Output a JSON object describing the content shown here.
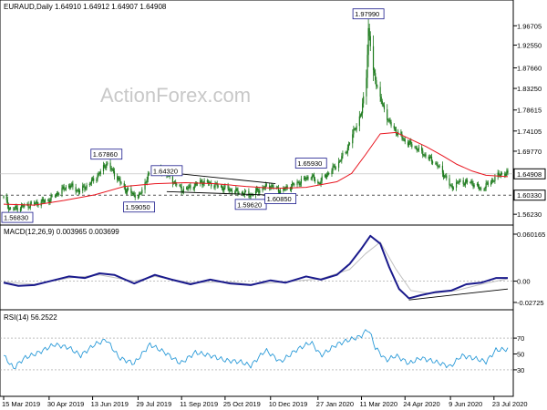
{
  "colors": {
    "background": "#ffffff",
    "axis": "#000000",
    "candle": "#1c7a1c",
    "sma": "#e8141e",
    "macd": "#1a1a8c",
    "signal": "#c0c0c0",
    "rsi": "#2a9ad8",
    "trendline": "#000000",
    "current_box": "#000000",
    "watermark": "#c8c8c8"
  },
  "header": {
    "title": "EURAUD,Daily  1.64910 1.64912 1.64907 1.64908",
    "watermark": "ActionForex.com"
  },
  "chart_data": [
    {
      "type": "candlestick",
      "panel": "price",
      "title": "EURAUD,Daily  1.64910 1.64912 1.64907 1.64908",
      "ylim": [
        1.545,
        1.995
      ],
      "y_ticks": [
        "1.96705",
        "1.92550",
        "1.87660",
        "1.83250",
        "1.78615",
        "1.74105",
        "1.69770",
        "1.64908",
        "1.60330",
        "1.56230"
      ],
      "current_price": "1.64908",
      "support_level": "1.60330",
      "annotations": [
        {
          "label": "1.56830",
          "date": "2019-03-22",
          "value": 1.5683
        },
        {
          "label": "1.67860",
          "date": "2019-06-27",
          "value": 1.6786
        },
        {
          "label": "1.59050",
          "date": "2019-07-30",
          "value": 1.5905
        },
        {
          "label": "1.64320",
          "date": "2019-08-27",
          "value": 1.6432
        },
        {
          "label": "1.59620",
          "date": "2019-11-20",
          "value": 1.5962
        },
        {
          "label": "1.60850",
          "date": "2019-12-20",
          "value": 1.6085
        },
        {
          "label": "1.65930",
          "date": "2020-01-20",
          "value": 1.6593
        },
        {
          "label": "1.97990",
          "date": "2020-03-18",
          "value": 1.9799
        }
      ],
      "x_ticks": [
        "15 Mar 2019",
        "30 Apr 2019",
        "13 Jun 2019",
        "29 Jul 2019",
        "11 Sep 2019",
        "25 Oct 2019",
        "10 Dec 2019",
        "27 Jan 2020",
        "11 Mar 2020",
        "24 Apr 2020",
        "9 Jun 2020",
        "23 Jul 2020"
      ],
      "xlim": [
        "2019-03-15",
        "2020-08-06"
      ],
      "series": [
        {
          "name": "",
          "price_path": [
            [
              "2019-03-15",
              1.598
            ],
            [
              "2019-03-22",
              1.572
            ],
            [
              "2019-04-01",
              1.578
            ],
            [
              "2019-04-15",
              1.585
            ],
            [
              "2019-04-30",
              1.593
            ],
            [
              "2019-05-10",
              1.61
            ],
            [
              "2019-05-20",
              1.625
            ],
            [
              "2019-05-30",
              1.612
            ],
            [
              "2019-06-10",
              1.628
            ],
            [
              "2019-06-20",
              1.65
            ],
            [
              "2019-06-27",
              1.672
            ],
            [
              "2019-07-05",
              1.65
            ],
            [
              "2019-07-15",
              1.618
            ],
            [
              "2019-07-22",
              1.608
            ],
            [
              "2019-07-30",
              1.6
            ],
            [
              "2019-08-07",
              1.64
            ],
            [
              "2019-08-15",
              1.662
            ],
            [
              "2019-08-27",
              1.648
            ],
            [
              "2019-09-05",
              1.628
            ],
            [
              "2019-09-11",
              1.615
            ],
            [
              "2019-09-20",
              1.62
            ],
            [
              "2019-10-01",
              1.632
            ],
            [
              "2019-10-10",
              1.628
            ],
            [
              "2019-10-25",
              1.618
            ],
            [
              "2019-11-05",
              1.611
            ],
            [
              "2019-11-20",
              1.604
            ],
            [
              "2019-12-01",
              1.618
            ],
            [
              "2019-12-10",
              1.624
            ],
            [
              "2019-12-20",
              1.612
            ],
            [
              "2020-01-05",
              1.628
            ],
            [
              "2020-01-20",
              1.645
            ],
            [
              "2020-01-27",
              1.628
            ],
            [
              "2020-02-05",
              1.648
            ],
            [
              "2020-02-15",
              1.668
            ],
            [
              "2020-02-25",
              1.7
            ],
            [
              "2020-03-05",
              1.75
            ],
            [
              "2020-03-11",
              1.78
            ],
            [
              "2020-03-16",
              1.86
            ],
            [
              "2020-03-18",
              1.96
            ],
            [
              "2020-03-23",
              1.87
            ],
            [
              "2020-03-30",
              1.81
            ],
            [
              "2020-04-08",
              1.76
            ],
            [
              "2020-04-15",
              1.74
            ],
            [
              "2020-04-24",
              1.72
            ],
            [
              "2020-05-05",
              1.705
            ],
            [
              "2020-05-15",
              1.688
            ],
            [
              "2020-05-25",
              1.672
            ],
            [
              "2020-06-05",
              1.64
            ],
            [
              "2020-06-09",
              1.62
            ],
            [
              "2020-06-18",
              1.632
            ],
            [
              "2020-07-01",
              1.63
            ],
            [
              "2020-07-10",
              1.615
            ],
            [
              "2020-07-23",
              1.638
            ],
            [
              "2020-07-30",
              1.65
            ],
            [
              "2020-08-06",
              1.649
            ]
          ]
        },
        {
          "name": "",
          "sma_path": [
            [
              "2019-03-15",
              1.584
            ],
            [
              "2019-04-15",
              1.582
            ],
            [
              "2019-05-15",
              1.592
            ],
            [
              "2019-06-15",
              1.604
            ],
            [
              "2019-07-15",
              1.622
            ],
            [
              "2019-08-15",
              1.628
            ],
            [
              "2019-09-15",
              1.63
            ],
            [
              "2019-10-15",
              1.628
            ],
            [
              "2019-11-15",
              1.622
            ],
            [
              "2019-12-15",
              1.618
            ],
            [
              "2020-01-15",
              1.62
            ],
            [
              "2020-02-15",
              1.632
            ],
            [
              "2020-03-01",
              1.65
            ],
            [
              "2020-03-15",
              1.69
            ],
            [
              "2020-03-30",
              1.735
            ],
            [
              "2020-04-15",
              1.738
            ],
            [
              "2020-05-01",
              1.722
            ],
            [
              "2020-05-15",
              1.708
            ],
            [
              "2020-06-01",
              1.688
            ],
            [
              "2020-06-15",
              1.67
            ],
            [
              "2020-07-01",
              1.655
            ],
            [
              "2020-07-15",
              1.646
            ],
            [
              "2020-08-06",
              1.643
            ]
          ]
        }
      ],
      "trendlines": [
        {
          "from": [
            "2019-08-27",
            1.652
          ],
          "to": [
            "2019-12-15",
            1.628
          ]
        },
        {
          "from": [
            "2019-08-27",
            1.611
          ],
          "to": [
            "2019-12-15",
            1.603
          ]
        }
      ]
    },
    {
      "type": "line",
      "panel": "macd",
      "title": "MACD(12,26,9) 0.003965 0.003699",
      "ylim": [
        -0.032,
        0.066
      ],
      "y_ticks": [
        "0.060165",
        "0.00",
        "-0.02725"
      ],
      "series": [
        {
          "name": "",
          "values": [
            [
              "2019-03-15",
              -0.002
            ],
            [
              "2019-03-30",
              -0.006
            ],
            [
              "2019-04-15",
              -0.005
            ],
            [
              "2019-05-01",
              0.0
            ],
            [
              "2019-05-20",
              0.006
            ],
            [
              "2019-06-05",
              0.004
            ],
            [
              "2019-06-20",
              0.01
            ],
            [
              "2019-07-05",
              0.008
            ],
            [
              "2019-07-25",
              -0.003
            ],
            [
              "2019-08-15",
              0.008
            ],
            [
              "2019-09-01",
              0.002
            ],
            [
              "2019-09-20",
              -0.004
            ],
            [
              "2019-10-10",
              0.002
            ],
            [
              "2019-10-30",
              -0.003
            ],
            [
              "2019-11-20",
              -0.005
            ],
            [
              "2019-12-10",
              0.001
            ],
            [
              "2019-12-25",
              -0.002
            ],
            [
              "2020-01-15",
              0.006
            ],
            [
              "2020-01-30",
              0.002
            ],
            [
              "2020-02-15",
              0.008
            ],
            [
              "2020-02-28",
              0.022
            ],
            [
              "2020-03-10",
              0.04
            ],
            [
              "2020-03-20",
              0.058
            ],
            [
              "2020-03-30",
              0.048
            ],
            [
              "2020-04-08",
              0.018
            ],
            [
              "2020-04-18",
              -0.01
            ],
            [
              "2020-04-28",
              -0.022
            ],
            [
              "2020-05-10",
              -0.018
            ],
            [
              "2020-05-25",
              -0.014
            ],
            [
              "2020-06-10",
              -0.012
            ],
            [
              "2020-06-25",
              -0.004
            ],
            [
              "2020-07-10",
              -0.002
            ],
            [
              "2020-07-25",
              0.004
            ],
            [
              "2020-08-06",
              0.004
            ]
          ]
        },
        {
          "name": "",
          "values": [
            [
              "2019-03-15",
              -0.001
            ],
            [
              "2019-04-15",
              -0.004
            ],
            [
              "2019-05-20",
              0.004
            ],
            [
              "2019-06-20",
              0.008
            ],
            [
              "2019-07-25",
              0.0
            ],
            [
              "2019-08-15",
              0.006
            ],
            [
              "2019-09-20",
              -0.002
            ],
            [
              "2019-10-30",
              -0.001
            ],
            [
              "2019-11-20",
              -0.004
            ],
            [
              "2019-12-25",
              -0.001
            ],
            [
              "2020-01-30",
              0.003
            ],
            [
              "2020-02-28",
              0.015
            ],
            [
              "2020-03-15",
              0.035
            ],
            [
              "2020-03-30",
              0.05
            ],
            [
              "2020-04-15",
              0.015
            ],
            [
              "2020-04-30",
              -0.012
            ],
            [
              "2020-05-20",
              -0.016
            ],
            [
              "2020-06-15",
              -0.012
            ],
            [
              "2020-07-10",
              -0.004
            ],
            [
              "2020-08-06",
              0.003
            ]
          ]
        }
      ],
      "trendline": {
        "from": [
          "2020-04-28",
          -0.024
        ],
        "to": [
          "2020-08-06",
          -0.01
        ]
      }
    },
    {
      "type": "line",
      "panel": "rsi",
      "title": "RSI(14) 56.2522",
      "ylim": [
        0,
        100
      ],
      "y_ticks": [
        "70",
        "50",
        "30"
      ],
      "series": [
        {
          "name": "",
          "values": [
            [
              "2019-03-15",
              48
            ],
            [
              "2019-03-25",
              32
            ],
            [
              "2019-04-05",
              45
            ],
            [
              "2019-04-20",
              52
            ],
            [
              "2019-05-05",
              62
            ],
            [
              "2019-05-20",
              58
            ],
            [
              "2019-06-01",
              48
            ],
            [
              "2019-06-15",
              62
            ],
            [
              "2019-06-27",
              68
            ],
            [
              "2019-07-10",
              45
            ],
            [
              "2019-07-25",
              38
            ],
            [
              "2019-08-10",
              62
            ],
            [
              "2019-08-25",
              52
            ],
            [
              "2019-09-10",
              38
            ],
            [
              "2019-09-25",
              52
            ],
            [
              "2019-10-10",
              48
            ],
            [
              "2019-10-25",
              42
            ],
            [
              "2019-11-10",
              40
            ],
            [
              "2019-11-20",
              35
            ],
            [
              "2019-12-05",
              55
            ],
            [
              "2019-12-20",
              40
            ],
            [
              "2020-01-05",
              55
            ],
            [
              "2020-01-20",
              65
            ],
            [
              "2020-01-30",
              48
            ],
            [
              "2020-02-15",
              62
            ],
            [
              "2020-02-28",
              68
            ],
            [
              "2020-03-10",
              72
            ],
            [
              "2020-03-18",
              82
            ],
            [
              "2020-03-25",
              58
            ],
            [
              "2020-04-05",
              42
            ],
            [
              "2020-04-15",
              48
            ],
            [
              "2020-04-28",
              38
            ],
            [
              "2020-05-10",
              45
            ],
            [
              "2020-05-25",
              40
            ],
            [
              "2020-06-09",
              34
            ],
            [
              "2020-06-20",
              48
            ],
            [
              "2020-07-05",
              44
            ],
            [
              "2020-07-15",
              40
            ],
            [
              "2020-07-25",
              55
            ],
            [
              "2020-08-06",
              56
            ]
          ]
        }
      ]
    }
  ]
}
